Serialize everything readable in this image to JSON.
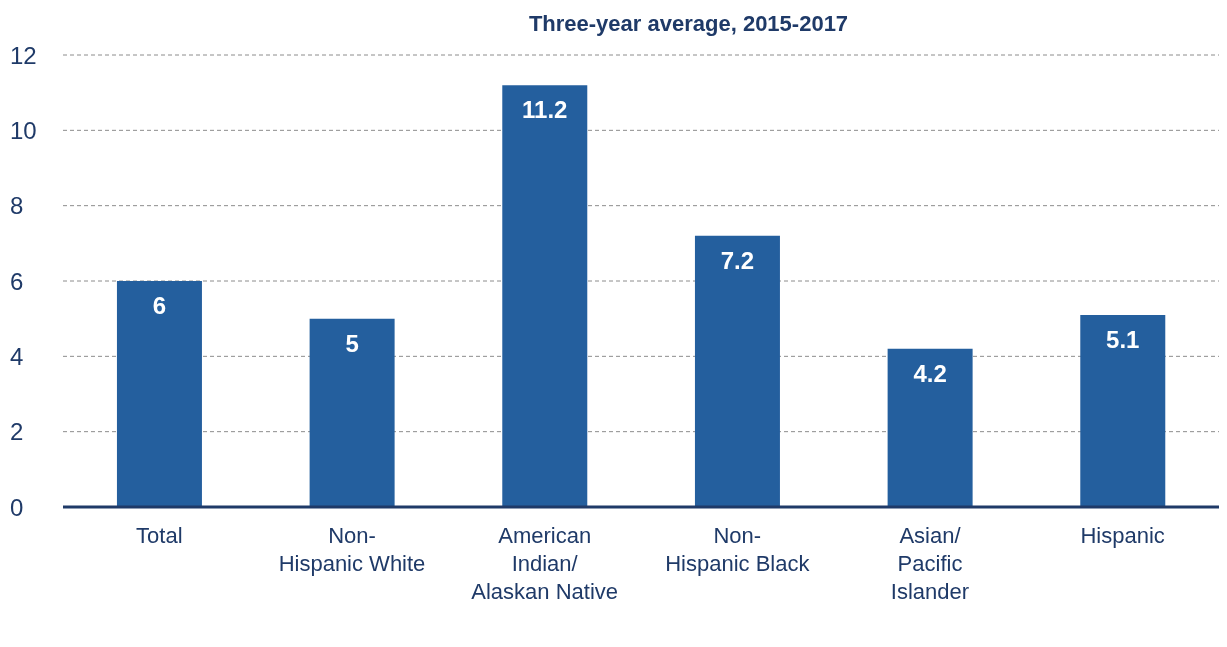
{
  "chart_data": {
    "type": "bar",
    "title": "Three-year average, 2015-2017",
    "categories": [
      "Total",
      "Non-Hispanic White",
      "American Indian/Alaskan Native",
      "Non-Hispanic Black",
      "Asian/Pacific Islander",
      "Hispanic"
    ],
    "values": [
      6,
      5,
      11.2,
      7.2,
      4.2,
      5.1
    ],
    "color": "#245f9e",
    "ylim": [
      0,
      12
    ],
    "yticks": [
      0,
      2,
      4,
      6,
      8,
      10,
      12
    ],
    "grid": "y",
    "data_labels": true
  }
}
